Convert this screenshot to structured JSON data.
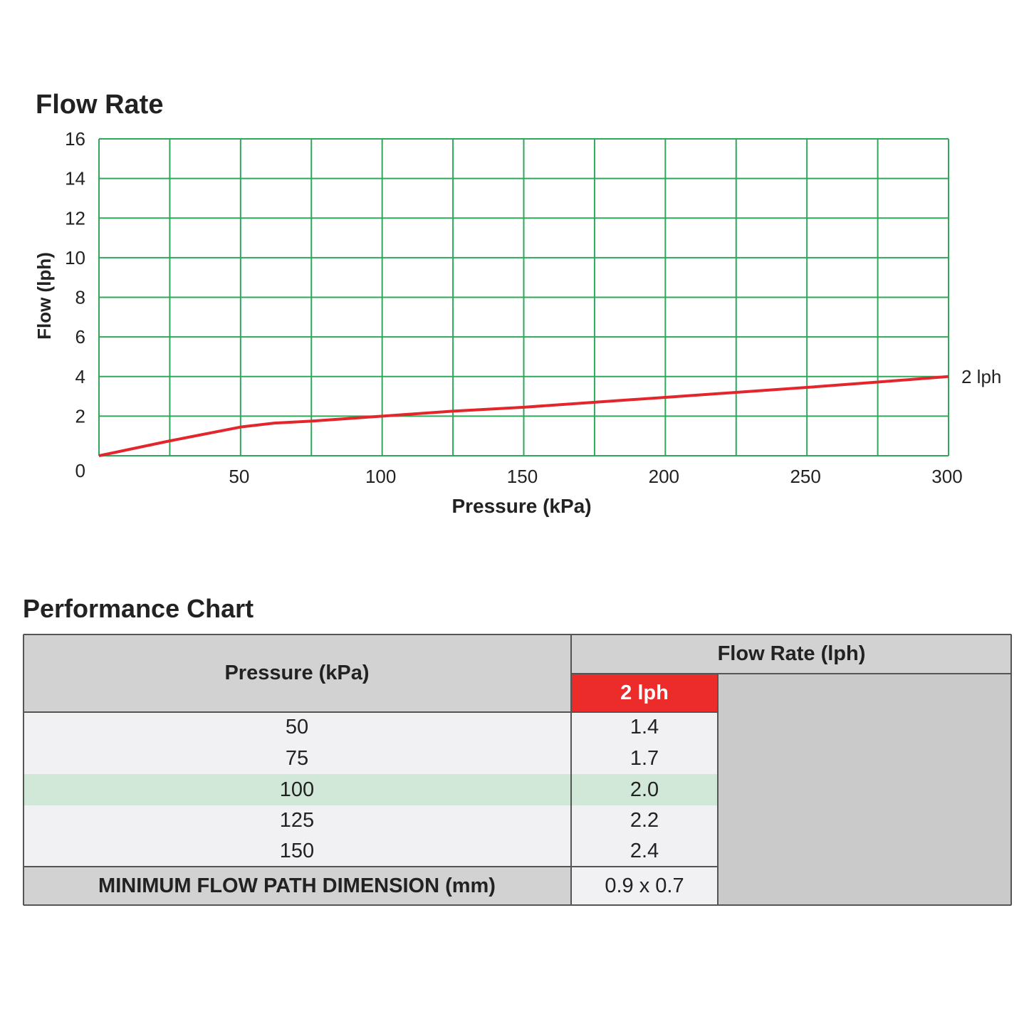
{
  "chart_data": {
    "type": "line",
    "title": "Flow Rate",
    "xlabel": "Pressure (kPa)",
    "ylabel": "Flow (lph)",
    "xlim": [
      0,
      300
    ],
    "ylim": [
      0,
      16
    ],
    "x_ticks": [
      50,
      100,
      150,
      200,
      250,
      300
    ],
    "y_ticks": [
      0,
      2,
      4,
      6,
      8,
      10,
      12,
      14,
      16
    ],
    "grid": true,
    "grid_color": "#2fa85a",
    "series": [
      {
        "name": "2 lph",
        "color": "#e3262b",
        "x": [
          0,
          25,
          50,
          62,
          75,
          100,
          125,
          150,
          175,
          200,
          225,
          250,
          275,
          300
        ],
        "y": [
          0,
          0.75,
          1.45,
          1.65,
          1.75,
          2.0,
          2.25,
          2.45,
          2.7,
          2.95,
          3.2,
          3.45,
          3.72,
          4.0
        ]
      }
    ]
  },
  "table": {
    "title": "Performance Chart",
    "pressure_header": "Pressure (kPa)",
    "flow_header": "Flow Rate (lph)",
    "emitter_header": "2 lph",
    "rows": [
      {
        "pressure": "50",
        "flow": "1.4"
      },
      {
        "pressure": "75",
        "flow": "1.7"
      },
      {
        "pressure": "100",
        "flow": "2.0"
      },
      {
        "pressure": "125",
        "flow": "2.2"
      },
      {
        "pressure": "150",
        "flow": "2.4"
      }
    ],
    "highlight_row": 2,
    "min_label": "MINIMUM FLOW PATH DIMENSION (mm)",
    "min_value": "0.9 x 0.7",
    "colors": {
      "header_bg": "#d2d2d2",
      "emitter_bg": "#ec2b2b",
      "highlight_bg": "#d1e8d8"
    }
  }
}
